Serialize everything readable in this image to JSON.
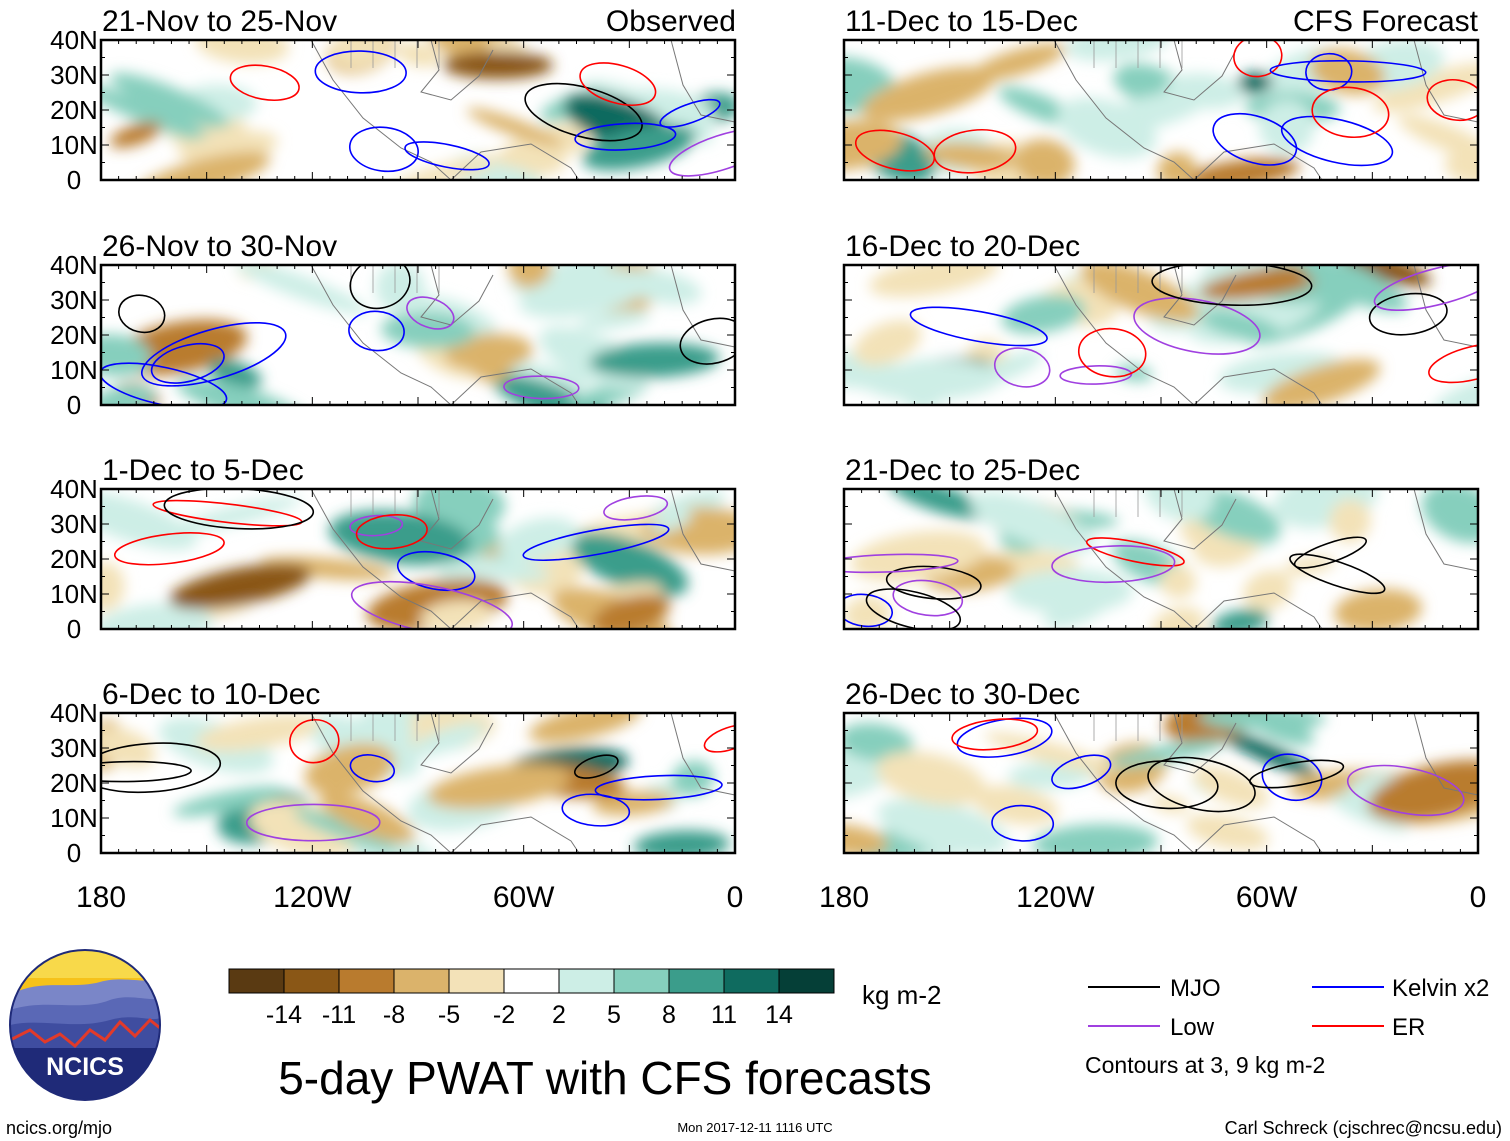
{
  "header": {
    "observed_label": "Observed",
    "forecast_label": "CFS Forecast"
  },
  "panels": {
    "left": [
      {
        "period": "21-Nov to 25-Nov"
      },
      {
        "period": "26-Nov to 30-Nov"
      },
      {
        "period": "1-Dec to 5-Dec"
      },
      {
        "period": "6-Dec to 10-Dec"
      }
    ],
    "right": [
      {
        "period": "11-Dec to 15-Dec"
      },
      {
        "period": "16-Dec to 20-Dec"
      },
      {
        "period": "21-Dec to 25-Dec"
      },
      {
        "period": "26-Dec to 30-Dec"
      }
    ]
  },
  "axes": {
    "lat_labels": [
      "40N",
      "30N",
      "20N",
      "10N",
      "0"
    ],
    "lon_labels": [
      "180",
      "120W",
      "60W",
      "0"
    ]
  },
  "colorbar": {
    "unit": "kg m-2",
    "tick_labels": [
      "-14",
      "-11",
      "-8",
      "-5",
      "-2",
      "2",
      "5",
      "8",
      "11",
      "14"
    ],
    "colors": [
      "#5a3a12",
      "#8a5716",
      "#b97b2e",
      "#dbb36b",
      "#f3e2b8",
      "#ffffff",
      "#cdeee6",
      "#86cfbd",
      "#3b9d8b",
      "#0f6b5f",
      "#053f37"
    ]
  },
  "legend": {
    "items": [
      {
        "label": "MJO",
        "color": "#000000"
      },
      {
        "label": "Kelvin x2",
        "color": "#0000ff"
      },
      {
        "label": "Low",
        "color": "#a040e0"
      },
      {
        "label": "ER",
        "color": "#ff0000"
      }
    ],
    "note": "Contours at 3, 9 kg m-2"
  },
  "logo": {
    "text": "NCICS"
  },
  "footer": {
    "title": "5-day PWAT with CFS forecasts",
    "url": "ncics.org/mjo",
    "timestamp": "Mon 2017-12-11 1116 UTC",
    "credit": "Carl Schreck (cjschrec@ncsu.edu)"
  }
}
